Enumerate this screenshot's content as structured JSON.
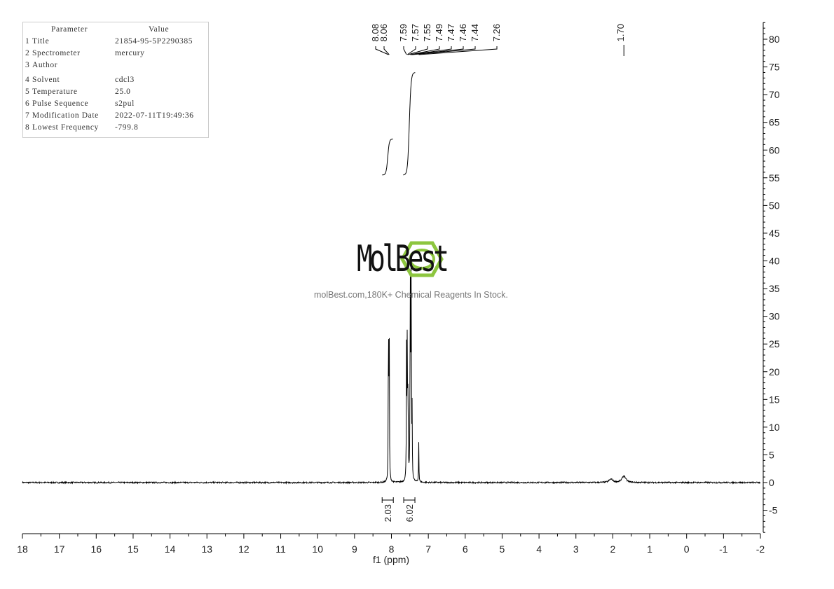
{
  "parameters": {
    "header": [
      "Parameter",
      "Value"
    ],
    "rows": [
      [
        "1",
        "Title",
        "21854-95-5P2290385"
      ],
      [
        "2",
        "Spectrometer",
        "mercury"
      ],
      [
        "3",
        "Author",
        ""
      ],
      [
        "4",
        "Solvent",
        "cdcl3"
      ],
      [
        "5",
        "Temperature",
        "25.0"
      ],
      [
        "6",
        "Pulse Sequence",
        "s2pul"
      ],
      [
        "7",
        "Modification Date",
        "2022-07-11T19:49:36"
      ],
      [
        "8",
        "Lowest Frequency",
        "-799.8"
      ]
    ]
  },
  "watermark": {
    "brand": "MolBest",
    "tagline": "molBest.com,180K+ Chemical Reagents In Stock.",
    "color": "#8dc63f"
  },
  "chart_data": {
    "type": "line",
    "xlabel": "f1 (ppm)",
    "xlim": [
      18,
      -2
    ],
    "ylim": [
      -9,
      83
    ],
    "x_ticks": [
      18,
      17,
      16,
      15,
      14,
      13,
      12,
      11,
      10,
      9,
      8,
      7,
      6,
      5,
      4,
      3,
      2,
      1,
      0,
      -1,
      -2
    ],
    "y_ticks": [
      -5,
      0,
      5,
      10,
      15,
      20,
      25,
      30,
      35,
      40,
      45,
      50,
      55,
      60,
      65,
      70,
      75,
      80
    ],
    "peak_labels": [
      "8.08",
      "8.06",
      "7.59",
      "7.57",
      "7.55",
      "7.49",
      "7.47",
      "7.46",
      "7.44",
      "7.26",
      "1.70"
    ],
    "peaks": [
      {
        "ppm": 8.08,
        "intensity": 32
      },
      {
        "ppm": 8.06,
        "intensity": 30
      },
      {
        "ppm": 7.59,
        "intensity": 25
      },
      {
        "ppm": 7.57,
        "intensity": 28
      },
      {
        "ppm": 7.55,
        "intensity": 18
      },
      {
        "ppm": 7.49,
        "intensity": 40
      },
      {
        "ppm": 7.47,
        "intensity": 36
      },
      {
        "ppm": 7.46,
        "intensity": 14
      },
      {
        "ppm": 7.44,
        "intensity": 12
      },
      {
        "ppm": 7.26,
        "intensity": 7.3
      },
      {
        "ppm": 1.7,
        "intensity": 1.2
      },
      {
        "ppm": 2.05,
        "intensity": 0.6
      }
    ],
    "integrals": [
      {
        "from": 8.25,
        "to": 7.95,
        "value": "2.03",
        "start": 55.5,
        "end": 62
      },
      {
        "from": 7.68,
        "to": 7.35,
        "value": "6.02",
        "start": 55.5,
        "end": 74
      }
    ],
    "series_color": "#000000"
  }
}
